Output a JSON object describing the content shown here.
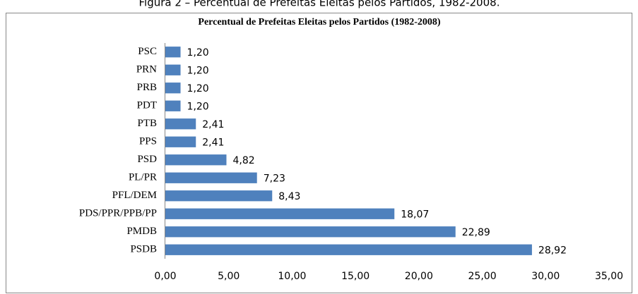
{
  "chart_data": {
    "type": "bar",
    "orientation": "horizontal",
    "figure_caption": "Figura 2 – Percentual de Prefeitas Eleitas pelos Partidos, 1982-2008.",
    "title": "Percentual de Prefeitas Eleitas pelos Partidos (1982-2008)",
    "categories": [
      "PSC",
      "PRN",
      "PRB",
      "PDT",
      "PTB",
      "PPS",
      "PSD",
      "PL/PR",
      "PFL/DEM",
      "PDS/PPR/PPB/PP",
      "PMDB",
      "PSDB"
    ],
    "values": [
      1.2,
      1.2,
      1.2,
      1.2,
      2.41,
      2.41,
      4.82,
      7.23,
      8.43,
      18.07,
      22.89,
      28.92
    ],
    "value_labels": [
      "1,20",
      "1,20",
      "1,20",
      "1,20",
      "2,41",
      "2,41",
      "4,82",
      "7,23",
      "8,43",
      "18,07",
      "22,89",
      "28,92"
    ],
    "color": "#4f81bd",
    "xlim": [
      0,
      35
    ],
    "xticks": [
      {
        "value": 0,
        "label": "0,00"
      },
      {
        "value": 5,
        "label": "5,00"
      },
      {
        "value": 10,
        "label": "10,00"
      },
      {
        "value": 15,
        "label": "15,00"
      },
      {
        "value": 20,
        "label": "20,00"
      },
      {
        "value": 25,
        "label": "25,00"
      },
      {
        "value": 30,
        "label": "30,00"
      },
      {
        "value": 35,
        "label": "35,00"
      }
    ],
    "grid": false
  }
}
